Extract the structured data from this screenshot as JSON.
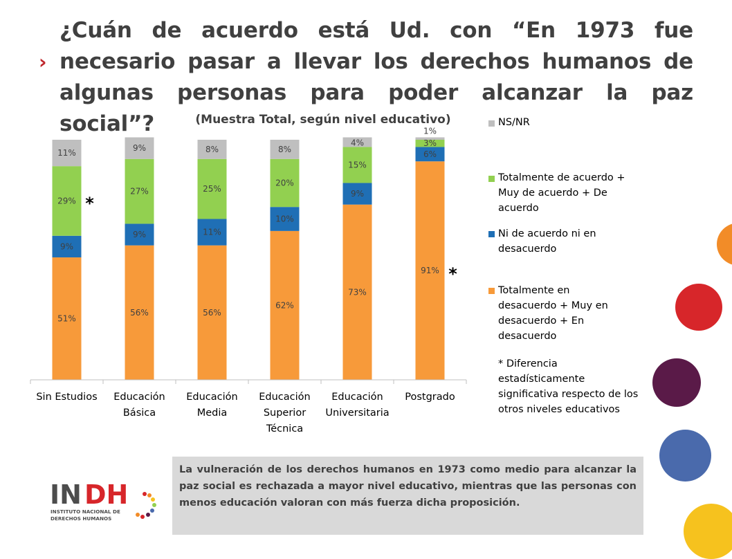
{
  "title": "¿Cuán de acuerdo está Ud. con “En 1973 fue necesario pasar a llevar los derechos humanos de algunas personas para poder alcanzar la paz social”?",
  "chart_data": {
    "type": "bar",
    "stacked": true,
    "subtitle": "(Muestra Total, según nivel educativo)",
    "categories": [
      [
        "Sin Estudios"
      ],
      [
        "Educación",
        "Básica"
      ],
      [
        "Educación",
        "Media"
      ],
      [
        "Educación",
        "Superior",
        "Técnica"
      ],
      [
        "Educación",
        "Universitaria"
      ],
      [
        "Postgrado"
      ]
    ],
    "series": [
      {
        "name": "Totalmente en desacuerdo + Muy en desacuerdo + En desacuerdo",
        "color": "#f79a3a",
        "values": [
          51,
          56,
          56,
          62,
          73,
          91
        ]
      },
      {
        "name": "Ni de acuerdo ni en desacuerdo",
        "color": "#1f6fb5",
        "values": [
          9,
          9,
          11,
          10,
          9,
          6
        ]
      },
      {
        "name": "Totalmente de acuerdo + Muy de acuerdo + De acuerdo",
        "color": "#92d050",
        "values": [
          29,
          27,
          25,
          20,
          15,
          3
        ]
      },
      {
        "name": "NS/NR",
        "color": "#bfbfbf",
        "values": [
          11,
          9,
          8,
          8,
          4,
          1
        ]
      }
    ],
    "significance_markers": [
      {
        "category_index": 0,
        "text": "*"
      },
      {
        "category_index": 5,
        "text": "*"
      }
    ],
    "ylim": [
      0,
      100
    ],
    "grid": false,
    "legend_position": "right"
  },
  "legend": {
    "items": [
      {
        "text": "NS/NR",
        "color": "#bfbfbf"
      },
      {
        "text": "Totalmente de acuerdo + Muy de acuerdo + De acuerdo",
        "color": "#92d050"
      },
      {
        "text": "Ni de acuerdo ni en desacuerdo",
        "color": "#1f6fb5"
      },
      {
        "text": "Totalmente en desacuerdo + Muy en desacuerdo + En desacuerdo",
        "color": "#f79a3a"
      }
    ],
    "note": "* Diferencia estadísticamente significativa respecto de los otros niveles educativos"
  },
  "callout": "La vulneración de los derechos humanos en 1973 como medio para alcanzar la paz social es rechazada a mayor nivel educativo, mientras que las personas con menos educación valoran con más fuerza dicha proposición.",
  "logo": {
    "wordmark": "INDH",
    "line1": "INSTITUTO NACIONAL DE",
    "line2": "DERECHOS HUMANOS"
  },
  "colors": {
    "title": "#404040",
    "bullet": "#c0282d",
    "deco_circles": [
      "#f28c28",
      "#d7262a",
      "#5a1a48",
      "#4a6aac",
      "#f6c21e"
    ]
  }
}
